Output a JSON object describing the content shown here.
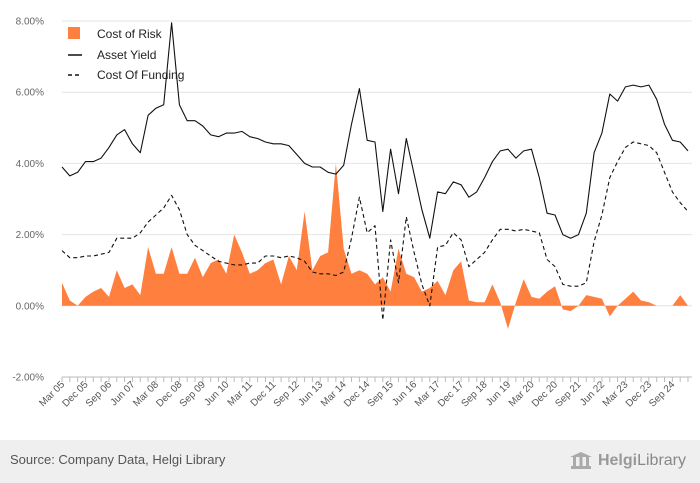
{
  "chart_data": {
    "type": "area+line",
    "title": "",
    "xlabel": "",
    "ylabel": "",
    "ylim": [
      -0.02,
      0.08
    ],
    "y_ticks": [
      "-2.00%",
      "0.00%",
      "2.00%",
      "4.00%",
      "6.00%",
      "8.00%"
    ],
    "y_tick_values": [
      -0.02,
      0,
      0.02,
      0.04,
      0.06,
      0.08
    ],
    "grid": true,
    "legend_position": "top-left",
    "x_tick_labels": [
      "Mar 05",
      "Dec 05",
      "Sep 06",
      "Jun 07",
      "Mar 08",
      "Dec 08",
      "Sep 09",
      "Jun 10",
      "Mar 11",
      "Dec 11",
      "Sep 12",
      "Jun 13",
      "Mar 14",
      "Dec 14",
      "Sep 15",
      "Jun 16",
      "Mar 17",
      "Dec 17",
      "Sep 18",
      "Jun 19",
      "Mar 20",
      "Dec 20",
      "Sep 21",
      "Jun 22",
      "Mar 23",
      "Dec 23",
      "Sep 24"
    ],
    "series": [
      {
        "name": "Cost of Risk",
        "kind": "area",
        "color": "#ff7f3f",
        "values": [
          0.0065,
          0.0015,
          0,
          0.0025,
          0.004,
          0.005,
          0.0025,
          0.01,
          0.005,
          0.006,
          0.003,
          0.0165,
          0.009,
          0.009,
          0.0165,
          0.009,
          0.009,
          0.0135,
          0.008,
          0.012,
          0.013,
          0.009,
          0.02,
          0.015,
          0.009,
          0.01,
          0.012,
          0.013,
          0.006,
          0.014,
          0.01,
          0.0265,
          0.01,
          0.014,
          0.015,
          0.04,
          0.016,
          0.009,
          0.01,
          0.009,
          0.006,
          0.008,
          0.004,
          0.016,
          0.009,
          0.008,
          0.004,
          0.005,
          0.007,
          0.003,
          0.01,
          0.0125,
          0.0015,
          0.001,
          0.001,
          0.006,
          0.001,
          -0.0065,
          0.001,
          0.0075,
          0.0025,
          0.002,
          0.004,
          0.0055,
          -0.001,
          -0.0015,
          0,
          0.003,
          0.0025,
          0.002,
          -0.003,
          0,
          0.002,
          0.004,
          0.0015,
          0.001,
          0,
          0,
          0,
          0.003,
          0
        ]
      },
      {
        "name": "Asset Yield",
        "kind": "line",
        "color": "#111111",
        "dash": "solid",
        "values": [
          0.039,
          0.0365,
          0.0375,
          0.0405,
          0.0405,
          0.0415,
          0.0445,
          0.048,
          0.0495,
          0.0455,
          0.043,
          0.0535,
          0.0555,
          0.0565,
          0.0795,
          0.0565,
          0.052,
          0.052,
          0.0505,
          0.048,
          0.0475,
          0.0485,
          0.0485,
          0.049,
          0.0475,
          0.047,
          0.046,
          0.0455,
          0.0455,
          0.045,
          0.0425,
          0.04,
          0.039,
          0.039,
          0.0375,
          0.037,
          0.0395,
          0.051,
          0.061,
          0.0465,
          0.046,
          0.0265,
          0.044,
          0.0315,
          0.047,
          0.037,
          0.027,
          0.019,
          0.032,
          0.0315,
          0.0348,
          0.034,
          0.0305,
          0.032,
          0.036,
          0.0405,
          0.0435,
          0.044,
          0.0415,
          0.0435,
          0.044,
          0.036,
          0.026,
          0.0255,
          0.02,
          0.019,
          0.02,
          0.026,
          0.043,
          0.0485,
          0.0595,
          0.0575,
          0.0615,
          0.062,
          0.0615,
          0.062,
          0.058,
          0.051,
          0.0465,
          0.046,
          0.0435
        ]
      },
      {
        "name": "Cost Of Funding",
        "kind": "line",
        "color": "#111111",
        "dash": "dashed",
        "values": [
          0.0155,
          0.0135,
          0.0135,
          0.014,
          0.014,
          0.0145,
          0.015,
          0.019,
          0.019,
          0.019,
          0.0205,
          0.0235,
          0.0255,
          0.0275,
          0.031,
          0.027,
          0.02,
          0.017,
          0.0155,
          0.014,
          0.0125,
          0.012,
          0.0115,
          0.0115,
          0.012,
          0.012,
          0.014,
          0.014,
          0.0135,
          0.014,
          0.0135,
          0.0125,
          0.0095,
          0.009,
          0.009,
          0.0085,
          0.0095,
          0.019,
          0.0305,
          0.0205,
          0.0225,
          -0.004,
          0.0185,
          0.0065,
          0.025,
          0.015,
          0.006,
          0,
          0.0165,
          0.017,
          0.0205,
          0.0185,
          0.011,
          0.013,
          0.015,
          0.0185,
          0.0215,
          0.0215,
          0.021,
          0.0215,
          0.021,
          0.0205,
          0.013,
          0.011,
          0.006,
          0.0055,
          0.0055,
          0.0065,
          0.018,
          0.0255,
          0.036,
          0.0405,
          0.0445,
          0.046,
          0.0455,
          0.045,
          0.043,
          0.0375,
          0.032,
          0.029,
          0.0265
        ]
      }
    ]
  },
  "footer": {
    "source": "Source: Company Data, Helgi Library",
    "brand_bold": "Helgi",
    "brand_rest": "Library"
  },
  "colors": {
    "area": "#ff7f3f",
    "line": "#111111",
    "grid": "#e4e4e4",
    "footer_bg": "#efefef"
  }
}
